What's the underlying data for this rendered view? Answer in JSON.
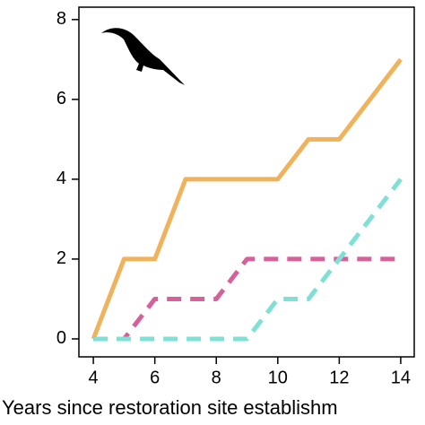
{
  "chart_data": {
    "type": "line",
    "xlabel": "Years since restoration site establishm",
    "x": [
      4,
      5,
      6,
      7,
      8,
      9,
      10,
      11,
      12,
      13,
      14
    ],
    "series": [
      {
        "color": "#f0b35b",
        "linestyle": "solid",
        "values": [
          0,
          2,
          2,
          4,
          4,
          4,
          4,
          5,
          5,
          6,
          7
        ]
      },
      {
        "color": "#d6609a",
        "linestyle": "dashed",
        "values": [
          0,
          0,
          1,
          1,
          1,
          2,
          2,
          2,
          2,
          2,
          2
        ]
      },
      {
        "color": "#7fe0d6",
        "linestyle": "dashed",
        "values": [
          0,
          0,
          0,
          0,
          0,
          0,
          1,
          1,
          2,
          3,
          4
        ]
      }
    ],
    "xlim": [
      3.53,
      14.44
    ],
    "ylim": [
      -0.45,
      8.31
    ],
    "xticks": [
      4,
      6,
      8,
      10,
      12,
      14
    ],
    "yticks": [
      0,
      2,
      4,
      6,
      8
    ]
  }
}
